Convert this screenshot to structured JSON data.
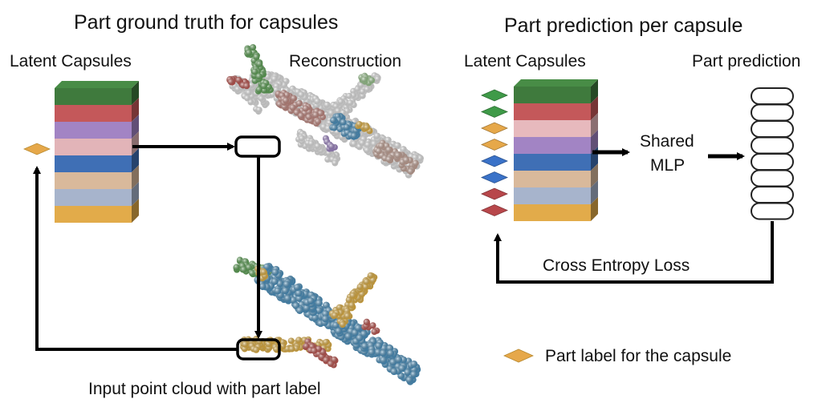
{
  "left_panel": {
    "title": "Part ground truth for capsules",
    "latent_label": "Latent Capsules",
    "reconstruction_label": "Reconstruction",
    "input_label": "Input point cloud with part label",
    "capsule_colors": [
      "#3f7a3d",
      "#c4585a",
      "#a284c4",
      "#e2b4b8",
      "#3f6fb5",
      "#d9b99b",
      "#a7b4cc",
      "#e2ab4a"
    ],
    "selected_part_color": "#e6a84a"
  },
  "right_panel": {
    "title": "Part prediction per capsule",
    "latent_label": "Latent Capsules",
    "prediction_label": "Part prediction",
    "mlp_label_line1": "Shared",
    "mlp_label_line2": "MLP",
    "loss_label": "Cross Entropy Loss",
    "capsule_colors": [
      "#3f7a3d",
      "#c4585a",
      "#e7b9bd",
      "#a284c4",
      "#3f6fb5",
      "#d9b99b",
      "#a7b4cc",
      "#e2ab4a"
    ],
    "diamond_colors": [
      "#3f9a48",
      "#3f9a48",
      "#e6a84a",
      "#e6a84a",
      "#3a72c8",
      "#3a72c8",
      "#b8474b",
      "#b8474b"
    ],
    "prediction_slots": 8
  },
  "legend": {
    "label": "Part label for the capsule",
    "color": "#e6a84a"
  },
  "airplane": {
    "body_color": "#e9e9e9",
    "fuselage_color": "#4a93c2",
    "wing_color": "#e6b340",
    "tail_color": "#5ea556",
    "accent_color": "#c25650"
  }
}
